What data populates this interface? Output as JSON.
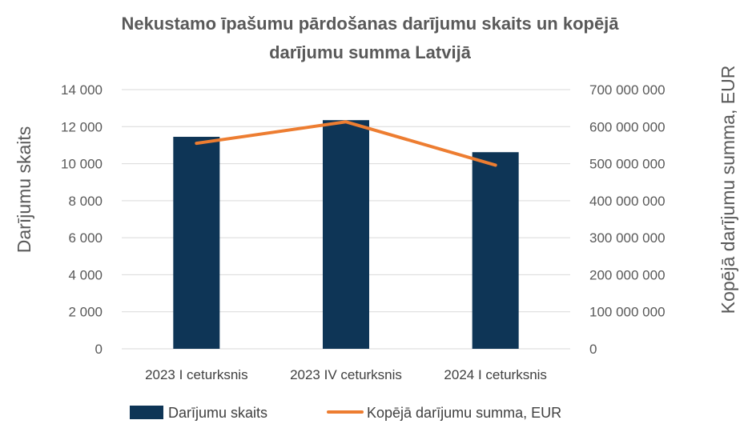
{
  "chart_data": {
    "type": "bar",
    "title_lines": [
      "Nekustamo īpašumu pārdošanas darījumu skaits un kopējā",
      "darījumu summa Latvijā"
    ],
    "categories": [
      "2023 I ceturksnis",
      "2023 IV ceturksnis",
      "2024 I ceturksnis"
    ],
    "series": [
      {
        "name": "Darījumu skaits",
        "type": "bar",
        "axis": "left",
        "color": "#0e3556",
        "values": [
          11450,
          12350,
          10620
        ]
      },
      {
        "name": "Kopējā darījumu summa, EUR",
        "type": "line",
        "axis": "right",
        "color": "#ed7d31",
        "values": [
          555000000,
          613000000,
          496000000
        ]
      }
    ],
    "ylabel": "Darījumu skaits",
    "y2label": "Kopējā darījumu summa, EUR",
    "ylim": [
      0,
      14000
    ],
    "y2lim": [
      0,
      700000000
    ],
    "yticks": [
      "0",
      "2 000",
      "4 000",
      "6 000",
      "8 000",
      "10 000",
      "12 000",
      "14 000"
    ],
    "y2ticks": [
      "0",
      "100 000 000",
      "200 000 000",
      "300 000 000",
      "400 000 000",
      "500 000 000",
      "600 000 000",
      "700 000 000"
    ],
    "grid": true,
    "legend_position": "bottom"
  }
}
